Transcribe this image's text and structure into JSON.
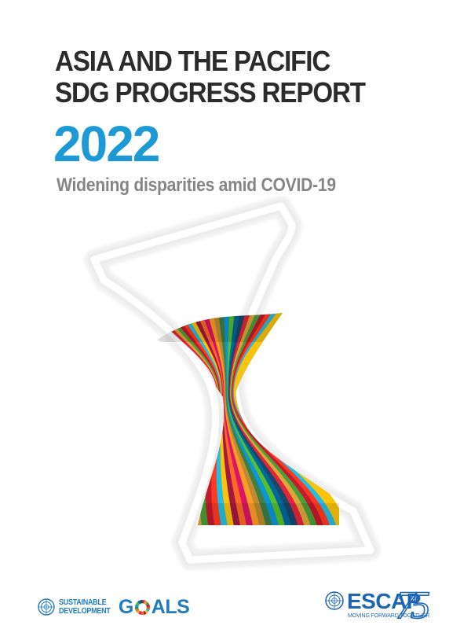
{
  "cover": {
    "title_line1": "ASIA AND THE PACIFIC",
    "title_line2": "SDG PROGRESS REPORT",
    "year": "2022",
    "subtitle": "Widening disparities amid COVID-19"
  },
  "colors": {
    "title": "#2b2b2b",
    "year": "#1d9ad6",
    "subtitle": "#858585",
    "brand_blue": "#1f7cc1",
    "sdg_palette": [
      "#e5243b",
      "#dda63a",
      "#4c9f38",
      "#c5192d",
      "#ff3a21",
      "#26bde2",
      "#fcc30b",
      "#a21942",
      "#fd6925",
      "#dd1367",
      "#fd9d24",
      "#bf8b2e",
      "#3f7e44",
      "#0a97d9",
      "#56c02b",
      "#00689d",
      "#19486a"
    ]
  },
  "footer": {
    "sdg_logo": {
      "line1": "SUSTAINABLE",
      "line2": "DEVELOPMENT",
      "goals_g": "G",
      "goals_rest": "ALS",
      "icon": "un-emblem-icon"
    },
    "escap_logo": {
      "name": "ESCAP",
      "tagline": "MOVING FORWARD TOGETHER",
      "anniversary": "75",
      "icon": "un-emblem-icon"
    }
  }
}
